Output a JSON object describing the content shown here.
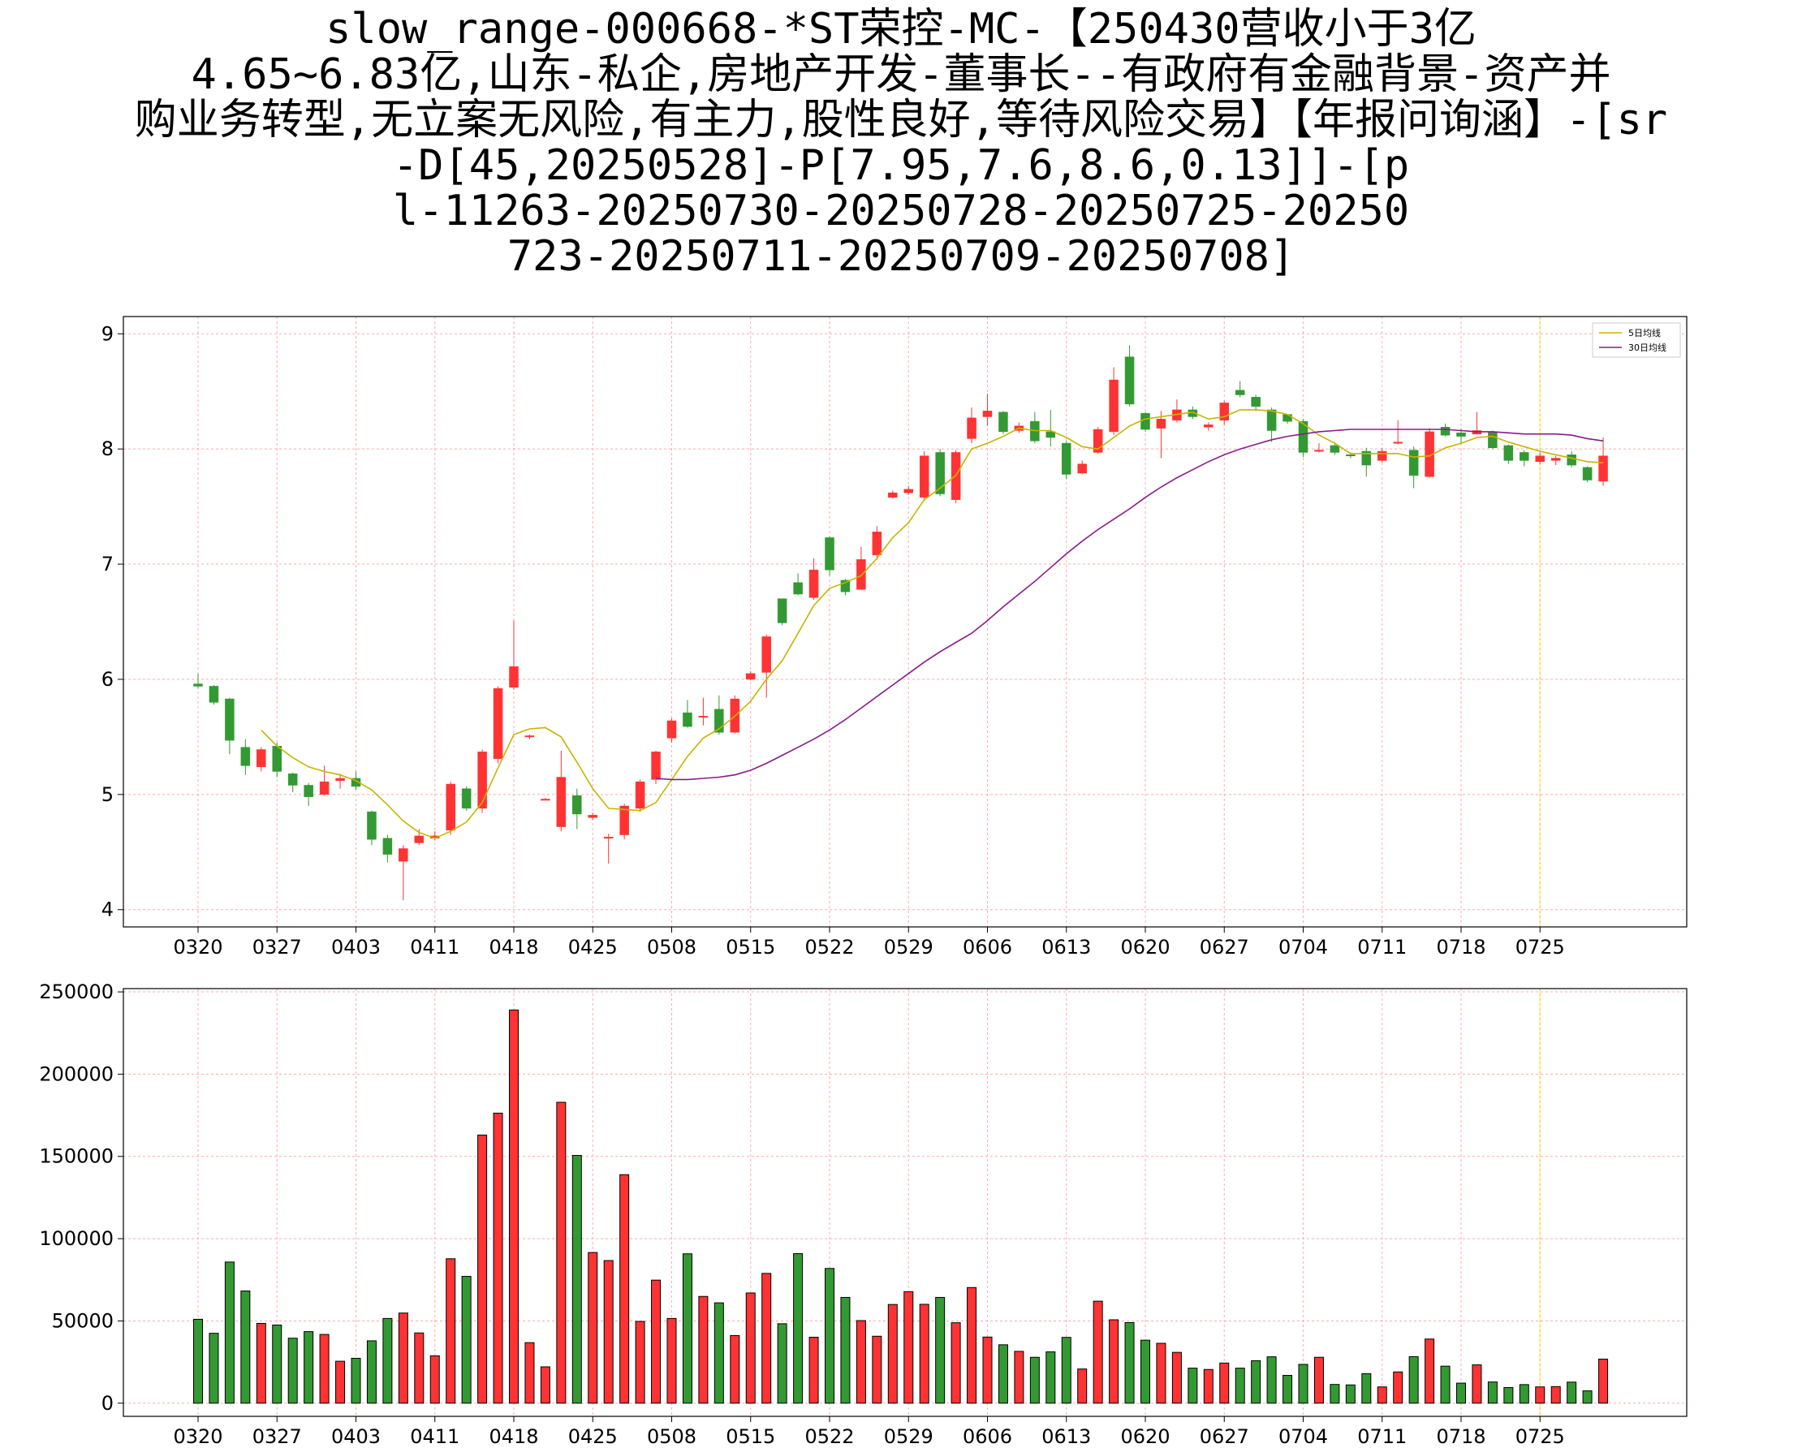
{
  "title_lines": [
    "slow_range-000668-*ST荣控-MC-【250430营收小于3亿",
    "4.65~6.83亿,山东-私企,房地产开发-董事长--有政府有金融背景-资产并",
    "购业务转型,无立案无风险,有主力,股性良好,等待风险交易】【年报问询涵】-[sr",
    "-D[45,20250528]-P[7.95,7.6,8.6,0.13]]-[p",
    "l-11263-20250730-20250728-20250725-20250",
    "723-20250711-20250709-20250708]"
  ],
  "colors": {
    "up": "#ff3333",
    "down": "#339933",
    "ma5": "#c8b400",
    "ma30": "#8b1a8b",
    "grid": "#ffaaaa",
    "highlight": "#ffff66"
  },
  "chart_data": [
    {
      "type": "candlestick",
      "ylim": [
        3.85,
        9.15
      ],
      "yticks": [
        4,
        5,
        6,
        7,
        8,
        9
      ],
      "x_tick_labels": [
        "0320",
        "0327",
        "0403",
        "0411",
        "0418",
        "0425",
        "0508",
        "0515",
        "0522",
        "0529",
        "0606",
        "0613",
        "0620",
        "0627",
        "0704",
        "0711",
        "0718",
        "0725"
      ],
      "x_tick_index": [
        0,
        5,
        10,
        15,
        20,
        25,
        30,
        35,
        40,
        45,
        50,
        55,
        60,
        65,
        70,
        75,
        80,
        85
      ],
      "n_bars": 90,
      "highlight_index": 85,
      "legend": [
        "5日均线",
        "30日均线"
      ],
      "candles": [
        [
          5.96,
          5.94,
          6.05,
          5.92
        ],
        [
          5.94,
          5.8,
          5.95,
          5.78
        ],
        [
          5.83,
          5.47,
          5.84,
          5.35
        ],
        [
          5.41,
          5.25,
          5.48,
          5.17
        ],
        [
          5.24,
          5.39,
          5.41,
          5.2
        ],
        [
          5.42,
          5.2,
          5.45,
          5.15
        ],
        [
          5.18,
          5.08,
          5.19,
          5.02
        ],
        [
          5.08,
          4.98,
          5.1,
          4.9
        ],
        [
          5.0,
          5.11,
          5.25,
          4.99
        ],
        [
          5.12,
          5.14,
          5.18,
          5.05
        ],
        [
          5.14,
          5.07,
          5.2,
          5.04
        ],
        [
          4.85,
          4.61,
          4.86,
          4.56
        ],
        [
          4.62,
          4.48,
          4.65,
          4.41
        ],
        [
          4.42,
          4.53,
          4.56,
          4.08
        ],
        [
          4.58,
          4.64,
          4.7,
          4.56
        ],
        [
          4.62,
          4.64,
          4.68,
          4.6
        ],
        [
          4.69,
          5.09,
          5.11,
          4.65
        ],
        [
          5.05,
          4.88,
          5.07,
          4.86
        ],
        [
          4.88,
          5.37,
          5.39,
          4.84
        ],
        [
          5.31,
          5.92,
          5.94,
          5.27
        ],
        [
          5.93,
          6.11,
          6.51,
          5.91
        ],
        [
          5.5,
          5.51,
          5.52,
          5.48
        ],
        [
          4.96,
          4.96,
          4.97,
          4.95
        ],
        [
          4.72,
          5.15,
          5.38,
          4.68
        ],
        [
          4.99,
          4.83,
          5.05,
          4.7
        ],
        [
          4.8,
          4.82,
          4.84,
          4.78
        ],
        [
          4.63,
          4.63,
          4.66,
          4.4
        ],
        [
          4.65,
          4.9,
          4.92,
          4.61
        ],
        [
          4.88,
          5.11,
          5.13,
          4.85
        ],
        [
          5.13,
          5.37,
          5.38,
          5.09
        ],
        [
          5.49,
          5.64,
          5.66,
          5.45
        ],
        [
          5.71,
          5.59,
          5.82,
          5.58
        ],
        [
          5.68,
          5.68,
          5.84,
          5.6
        ],
        [
          5.74,
          5.54,
          5.86,
          5.52
        ],
        [
          5.54,
          5.83,
          5.86,
          5.53
        ],
        [
          6.0,
          6.05,
          6.07,
          5.99
        ],
        [
          6.06,
          6.37,
          6.39,
          5.84
        ],
        [
          6.7,
          6.49,
          6.7,
          6.47
        ],
        [
          6.84,
          6.74,
          6.92,
          6.73
        ],
        [
          6.71,
          6.95,
          7.05,
          6.69
        ],
        [
          7.23,
          6.95,
          7.24,
          6.9
        ],
        [
          6.86,
          6.76,
          6.87,
          6.73
        ],
        [
          6.78,
          7.04,
          7.15,
          6.78
        ],
        [
          7.08,
          7.28,
          7.33,
          7.04
        ],
        [
          7.58,
          7.62,
          7.64,
          7.57
        ],
        [
          7.62,
          7.65,
          7.68,
          7.6
        ],
        [
          7.58,
          7.94,
          7.98,
          7.55
        ],
        [
          7.97,
          7.61,
          8.0,
          7.59
        ],
        [
          7.56,
          7.97,
          7.99,
          7.53
        ],
        [
          8.09,
          8.27,
          8.36,
          8.05
        ],
        [
          8.28,
          8.33,
          8.48,
          8.2
        ],
        [
          8.32,
          8.15,
          8.33,
          8.13
        ],
        [
          8.16,
          8.2,
          8.23,
          8.14
        ],
        [
          8.24,
          8.07,
          8.32,
          8.05
        ],
        [
          8.15,
          8.1,
          8.34,
          8.02
        ],
        [
          8.05,
          7.78,
          8.07,
          7.74
        ],
        [
          7.79,
          7.87,
          7.9,
          7.78
        ],
        [
          7.97,
          8.17,
          8.19,
          7.96
        ],
        [
          8.15,
          8.6,
          8.71,
          8.12
        ],
        [
          8.8,
          8.39,
          8.9,
          8.37
        ],
        [
          8.31,
          8.17,
          8.32,
          8.15
        ],
        [
          8.18,
          8.26,
          8.33,
          7.92
        ],
        [
          8.25,
          8.34,
          8.43,
          8.23
        ],
        [
          8.34,
          8.28,
          8.37,
          8.26
        ],
        [
          8.19,
          8.21,
          8.23,
          8.16
        ],
        [
          8.25,
          8.4,
          8.42,
          8.21
        ],
        [
          8.51,
          8.47,
          8.59,
          8.45
        ],
        [
          8.45,
          8.37,
          8.47,
          8.33
        ],
        [
          8.34,
          8.16,
          8.36,
          8.06
        ],
        [
          8.3,
          8.24,
          8.3,
          8.22
        ],
        [
          8.24,
          7.97,
          8.26,
          7.93
        ],
        [
          7.99,
          7.99,
          8.05,
          7.97
        ],
        [
          8.03,
          7.97,
          8.06,
          7.95
        ],
        [
          7.95,
          7.94,
          7.97,
          7.92
        ],
        [
          7.98,
          7.86,
          8.01,
          7.76
        ],
        [
          7.9,
          7.98,
          8.01,
          7.88
        ],
        [
          8.06,
          8.06,
          8.25,
          8.04
        ],
        [
          7.99,
          7.77,
          8.02,
          7.66
        ],
        [
          7.76,
          8.15,
          8.18,
          7.75
        ],
        [
          8.19,
          8.12,
          8.22,
          8.11
        ],
        [
          8.14,
          8.11,
          8.18,
          8.05
        ],
        [
          8.13,
          8.16,
          8.32,
          8.13
        ],
        [
          8.15,
          8.01,
          8.16,
          8.0
        ],
        [
          8.03,
          7.9,
          8.04,
          7.87
        ],
        [
          7.97,
          7.9,
          7.99,
          7.85
        ],
        [
          7.89,
          7.94,
          7.97,
          7.87
        ],
        [
          7.9,
          7.92,
          7.94,
          7.86
        ],
        [
          7.95,
          7.86,
          7.98,
          7.84
        ],
        [
          7.84,
          7.73,
          7.85,
          7.71
        ],
        [
          7.72,
          7.94,
          8.1,
          7.68
        ]
      ],
      "ma5": [
        null,
        null,
        null,
        null,
        5.56,
        5.42,
        5.32,
        5.24,
        5.2,
        5.17,
        5.12,
        5.04,
        4.91,
        4.77,
        4.67,
        4.62,
        4.68,
        4.76,
        4.93,
        5.23,
        5.52,
        5.57,
        5.58,
        5.5,
        5.28,
        5.05,
        4.88,
        4.87,
        4.86,
        4.93,
        5.13,
        5.33,
        5.49,
        5.57,
        5.68,
        5.81,
        6.0,
        6.16,
        6.4,
        6.64,
        6.79,
        6.84,
        6.9,
        7.05,
        7.23,
        7.36,
        7.56,
        7.66,
        7.77,
        8.0,
        8.05,
        8.11,
        8.18,
        8.16,
        8.16,
        8.1,
        8.02,
        8.0,
        8.1,
        8.2,
        8.26,
        8.28,
        8.3,
        8.32,
        8.26,
        8.28,
        8.34,
        8.34,
        8.33,
        8.3,
        8.22,
        8.12,
        8.05,
        7.96,
        7.96,
        7.96,
        7.96,
        7.93,
        7.94,
        8.01,
        8.05,
        8.1,
        8.11,
        8.06,
        8.02,
        7.98,
        7.95,
        7.92,
        7.89,
        7.88
      ],
      "ma30": [
        null,
        null,
        null,
        null,
        null,
        null,
        null,
        null,
        null,
        null,
        null,
        null,
        null,
        null,
        null,
        null,
        null,
        null,
        null,
        null,
        null,
        null,
        null,
        null,
        null,
        null,
        null,
        null,
        null,
        5.14,
        5.13,
        5.13,
        5.14,
        5.15,
        5.17,
        5.21,
        5.27,
        5.34,
        5.41,
        5.48,
        5.56,
        5.65,
        5.75,
        5.85,
        5.95,
        6.05,
        6.15,
        6.24,
        6.32,
        6.4,
        6.51,
        6.63,
        6.74,
        6.85,
        6.97,
        7.09,
        7.2,
        7.3,
        7.39,
        7.48,
        7.58,
        7.67,
        7.75,
        7.82,
        7.89,
        7.95,
        8.0,
        8.04,
        8.08,
        8.11,
        8.13,
        8.15,
        8.16,
        8.17,
        8.17,
        8.17,
        8.17,
        8.17,
        8.17,
        8.17,
        8.16,
        8.15,
        8.15,
        8.14,
        8.13,
        8.13,
        8.13,
        8.12,
        8.09,
        8.07
      ]
    },
    {
      "type": "bar",
      "ylim": [
        -8000,
        252000
      ],
      "yticks": [
        0,
        50000,
        100000,
        150000,
        200000,
        250000
      ],
      "x_tick_labels": [
        "0320",
        "0327",
        "0403",
        "0411",
        "0418",
        "0425",
        "0508",
        "0515",
        "0522",
        "0529",
        "0606",
        "0613",
        "0620",
        "0627",
        "0704",
        "0711",
        "0718",
        "0725"
      ],
      "volume": [
        51000,
        42500,
        85800,
        68200,
        48500,
        47500,
        39500,
        43500,
        41800,
        25500,
        27300,
        37900,
        51500,
        54800,
        42700,
        28800,
        87800,
        77100,
        163000,
        176300,
        239000,
        36800,
        22100,
        182900,
        150600,
        91600,
        86700,
        138900,
        49700,
        74800,
        51500,
        90800,
        64900,
        61000,
        41100,
        67000,
        78900,
        48300,
        90900,
        40100,
        81900,
        64300,
        50200,
        40700,
        60000,
        67800,
        60100,
        64300,
        48900,
        70300,
        40200,
        35500,
        31500,
        27900,
        31200,
        40000,
        20800,
        62000,
        50700,
        49000,
        38300,
        36400,
        30900,
        21300,
        20500,
        24400,
        21300,
        25800,
        28200,
        16900,
        23600,
        27900,
        11400,
        11100,
        17900,
        9900,
        19000,
        28300,
        39000,
        22500,
        12200,
        23300,
        12900,
        9500,
        11300,
        9900,
        10100,
        12800,
        7500,
        26800
      ]
    }
  ]
}
